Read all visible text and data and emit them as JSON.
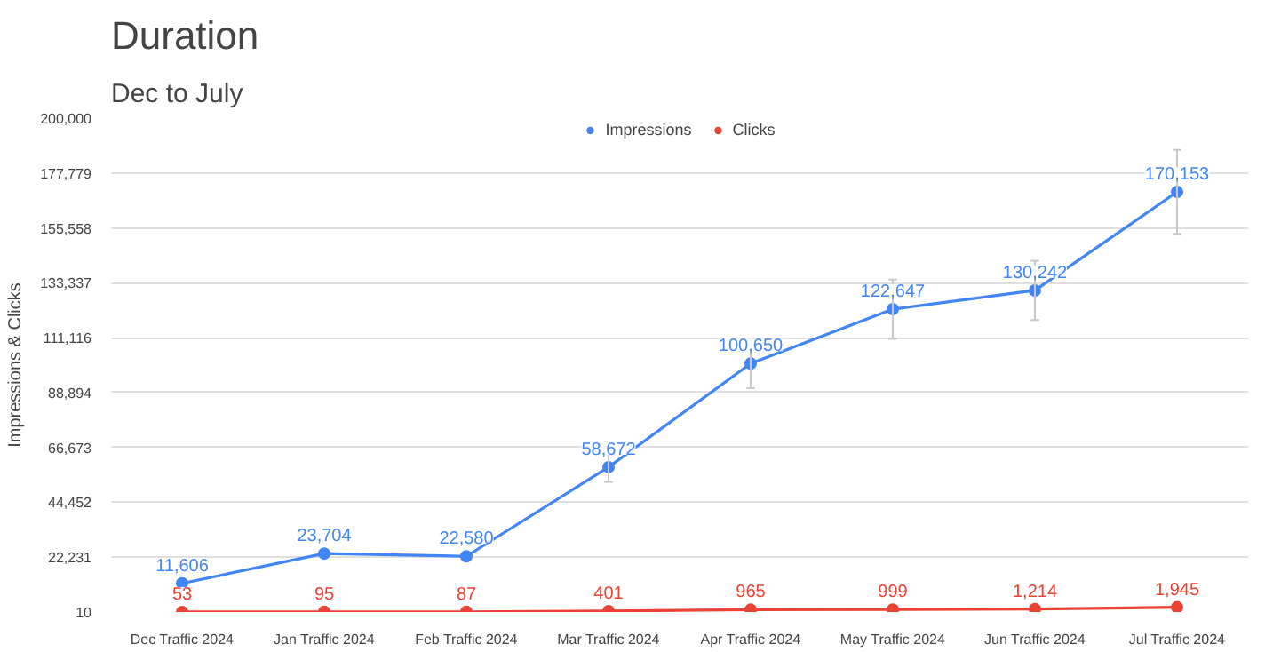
{
  "chart_data": {
    "type": "line",
    "title": "Duration",
    "subtitle": "Dec to July",
    "ylabel": "Impressions & Clicks",
    "categories": [
      "Dec Traffic 2024",
      "Jan Traffic 2024",
      "Feb Traffic 2024",
      "Mar Traffic 2024",
      "Apr Traffic 2024",
      "May Traffic 2024",
      "Jun Traffic 2024",
      "Jul Traffic 2024"
    ],
    "series": [
      {
        "name": "Impressions",
        "color": "#4285f4",
        "values": [
          11606,
          23704,
          22580,
          58672,
          100650,
          122647,
          130242,
          170153
        ],
        "errors": [
          null,
          null,
          null,
          6000,
          10000,
          12000,
          12000,
          17000
        ],
        "value_labels": [
          "11,606",
          "23,704",
          "22,580",
          "58,672",
          "100,650",
          "122,647",
          "130,242",
          "170,153"
        ]
      },
      {
        "name": "Clicks",
        "color": "#ea4335",
        "values": [
          53,
          95,
          87,
          401,
          965,
          999,
          1214,
          1945
        ],
        "value_labels": [
          "53",
          "95",
          "87",
          "401",
          "965",
          "999",
          "1,214",
          "1,945"
        ]
      }
    ],
    "ylim": [
      10,
      200000
    ],
    "yticks": [
      10,
      {
        "value": 22231,
        "label": "22,231"
      },
      {
        "value": 44452,
        "label": "44,452"
      },
      {
        "value": 66673,
        "label": "66,673"
      },
      {
        "value": 88894,
        "label": "88,894"
      },
      {
        "value": 111116,
        "label": "111,116"
      },
      {
        "value": 133337,
        "label": "133,337"
      },
      {
        "value": 155558,
        "label": "155,558"
      },
      {
        "value": 177779,
        "label": "177,779"
      },
      {
        "value": 200000,
        "label": "200,000"
      }
    ],
    "grid": "y",
    "legend": "top",
    "marker": "circle",
    "line_style": "solid"
  }
}
